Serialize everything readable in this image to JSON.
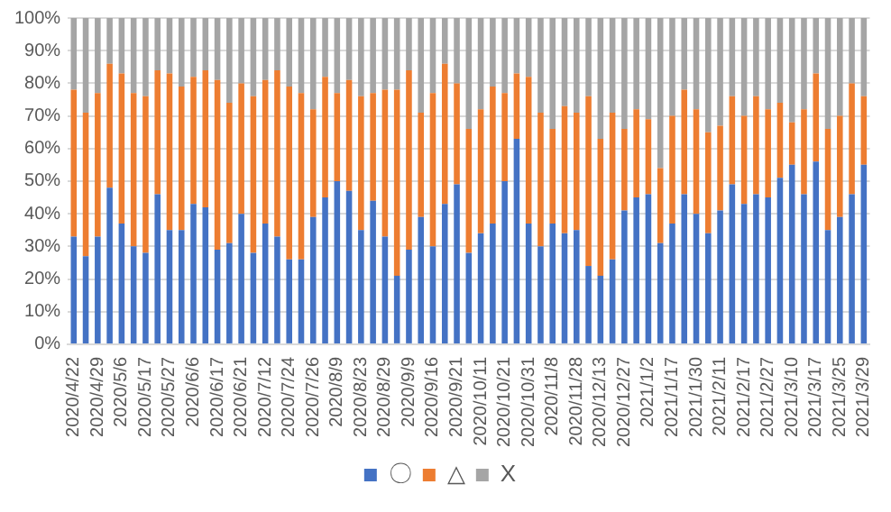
{
  "chart_data": {
    "type": "bar",
    "stacked": true,
    "categories": [
      "2020/4/22",
      null,
      "2020/4/29",
      null,
      "2020/5/6",
      null,
      "2020/5/17",
      null,
      "2020/5/27",
      null,
      "2020/6/6",
      null,
      "2020/6/17",
      null,
      "2020/6/21",
      null,
      "2020/7/12",
      null,
      "2020/7/24",
      null,
      "2020/7/26",
      null,
      "2020/8/9",
      null,
      "2020/8/23",
      null,
      "2020/8/29",
      null,
      "2020/9/9",
      null,
      "2020/9/16",
      null,
      "2020/9/21",
      null,
      "2020/10/11",
      null,
      "2020/10/21",
      null,
      "2020/10/31",
      null,
      "2020/11/8",
      null,
      "2020/11/28",
      null,
      "2020/12/13",
      null,
      "2020/12/27",
      null,
      "2021/1/2",
      null,
      "2021/1/17",
      null,
      "2021/1/30",
      null,
      "2021/2/11",
      null,
      "2021/2/17",
      null,
      "2021/2/27",
      null,
      "2021/3/10",
      null,
      "2021/3/17",
      null,
      "2021/3/25",
      null,
      "2021/3/29"
    ],
    "series": [
      {
        "name": "〇",
        "color": "#4472c4",
        "values": [
          33,
          27,
          33,
          48,
          37,
          30,
          28,
          46,
          35,
          35,
          43,
          42,
          29,
          31,
          40,
          28,
          37,
          33,
          26,
          26,
          39,
          45,
          50,
          47,
          35,
          44,
          33,
          21,
          29,
          39,
          30,
          43,
          49,
          28,
          34,
          37,
          50,
          63,
          37,
          30,
          37,
          34,
          35,
          24,
          21,
          26,
          41,
          45,
          46,
          31,
          37,
          46,
          40,
          34,
          41,
          49,
          43,
          46,
          45,
          51,
          55,
          46,
          56,
          35,
          39,
          46,
          55
        ]
      },
      {
        "name": "△",
        "color": "#ed7d31",
        "values": [
          45,
          44,
          44,
          38,
          46,
          47,
          48,
          38,
          48,
          44,
          39,
          42,
          52,
          43,
          40,
          48,
          44,
          51,
          53,
          51,
          33,
          37,
          27,
          34,
          41,
          33,
          45,
          57,
          55,
          32,
          47,
          43,
          31,
          38,
          38,
          42,
          27,
          20,
          45,
          41,
          29,
          39,
          36,
          52,
          42,
          45,
          25,
          27,
          23,
          23,
          33,
          32,
          32,
          31,
          26,
          27,
          27,
          30,
          27,
          23,
          13,
          26,
          27,
          31,
          31,
          34,
          21
        ]
      },
      {
        "name": "X",
        "color": "#a5a5a5",
        "values": [
          22,
          29,
          23,
          14,
          17,
          23,
          24,
          16,
          17,
          21,
          18,
          16,
          19,
          26,
          20,
          24,
          19,
          16,
          21,
          23,
          28,
          18,
          23,
          19,
          24,
          23,
          22,
          22,
          16,
          29,
          23,
          14,
          20,
          34,
          28,
          21,
          23,
          17,
          18,
          29,
          34,
          27,
          29,
          24,
          37,
          29,
          34,
          28,
          31,
          46,
          30,
          22,
          28,
          35,
          33,
          24,
          30,
          24,
          28,
          26,
          32,
          28,
          17,
          34,
          30,
          20,
          24
        ]
      }
    ],
    "ylim": [
      0,
      100
    ],
    "yticks": [
      {
        "value": 0,
        "label": "0%"
      },
      {
        "value": 10,
        "label": "10%"
      },
      {
        "value": 20,
        "label": "20%"
      },
      {
        "value": 30,
        "label": "30%"
      },
      {
        "value": 40,
        "label": "40%"
      },
      {
        "value": 50,
        "label": "50%"
      },
      {
        "value": 60,
        "label": "60%"
      },
      {
        "value": 70,
        "label": "70%"
      },
      {
        "value": 80,
        "label": "80%"
      },
      {
        "value": 90,
        "label": "90%"
      },
      {
        "value": 100,
        "label": "100%"
      }
    ],
    "grid": "y",
    "legend": "bottom"
  }
}
